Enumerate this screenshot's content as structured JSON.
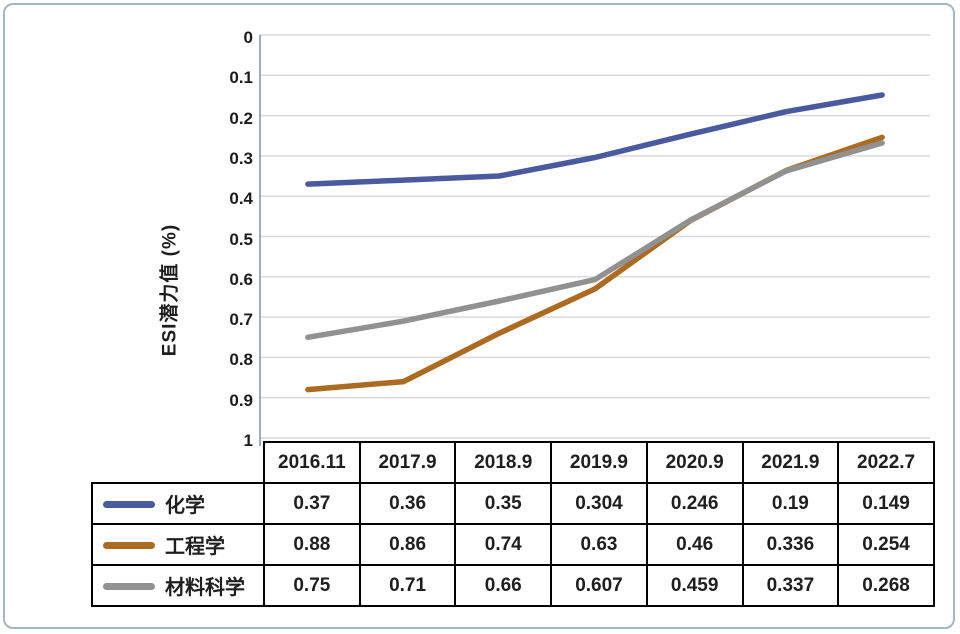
{
  "panel": {
    "border_color": "#a4b6c4",
    "background": "#ffffff"
  },
  "chart_data": {
    "type": "line",
    "title": "",
    "xlabel": "",
    "ylabel": "ESI潜力值 (%)",
    "categories": [
      "2016.11",
      "2017.9",
      "2018.9",
      "2019.9",
      "2020.9",
      "2021.9",
      "2022.7"
    ],
    "series": [
      {
        "name": "化学",
        "color": "#4a5a9e",
        "values": [
          0.37,
          0.36,
          0.35,
          0.304,
          0.246,
          0.19,
          0.149
        ]
      },
      {
        "name": "工程学",
        "color": "#ac6b23",
        "values": [
          0.88,
          0.86,
          0.74,
          0.63,
          0.46,
          0.336,
          0.254
        ]
      },
      {
        "name": "材料科学",
        "color": "#919191",
        "values": [
          0.75,
          0.71,
          0.66,
          0.607,
          0.459,
          0.337,
          0.268
        ]
      }
    ],
    "ylim": [
      0,
      1
    ],
    "y_axis_inverted": true,
    "y_ticks": [
      "0",
      "0.1",
      "0.2",
      "0.3",
      "0.4",
      "0.5",
      "0.6",
      "0.7",
      "0.8",
      "0.9",
      "1"
    ],
    "grid": true,
    "gridline_color": "#d8d8d8",
    "axis_line_color": "#8696a6",
    "legend_position": "table-left",
    "table_border_color": "#000000"
  }
}
